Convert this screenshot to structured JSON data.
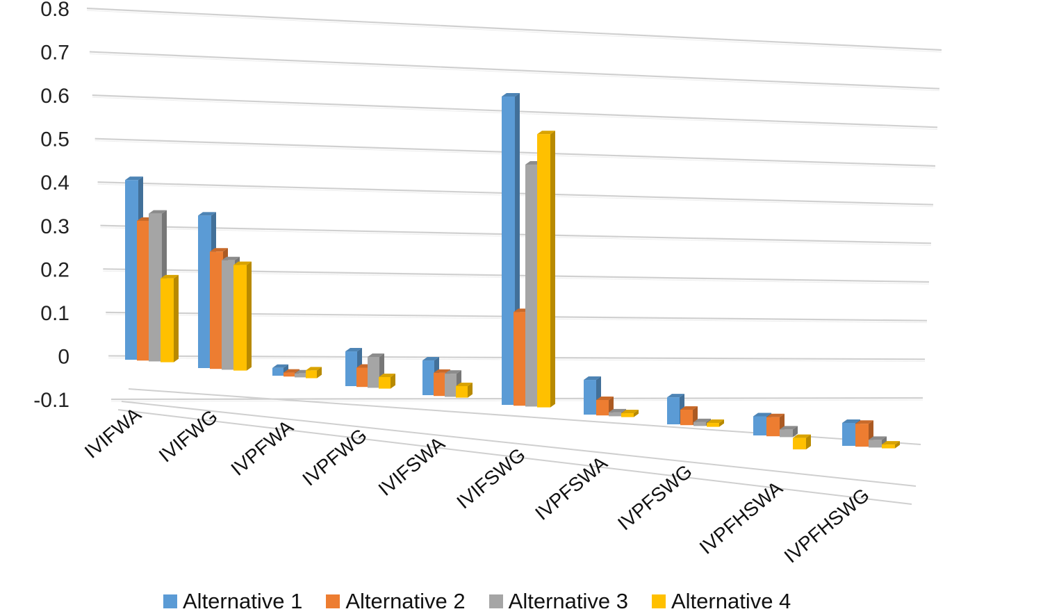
{
  "chart_data": {
    "type": "bar",
    "title": "",
    "xlabel": "",
    "ylabel": "",
    "ylim": [
      -0.1,
      0.8
    ],
    "yticks": [
      "0.8",
      "0.7",
      "0.6",
      "0.5",
      "0.4",
      "0.3",
      "0.2",
      "0.1",
      "0",
      "-0.1"
    ],
    "grid": true,
    "legend_position": "bottom",
    "categories": [
      "IVIFWA",
      "IVIFWG",
      "IVPFWA",
      "IVPFWG",
      "IVIFSWA",
      "IVIFSWG",
      "IVPFSWA",
      "IVPFSWG",
      "IVPFHSWA",
      "IVPFHSWG"
    ],
    "series": [
      {
        "name": "Alternative 1",
        "color": "#5B9BD5",
        "values": [
          0.45,
          0.39,
          0.02,
          0.09,
          0.09,
          0.79,
          0.09,
          0.07,
          0.05,
          0.06
        ]
      },
      {
        "name": "Alternative 2",
        "color": "#ED7D31",
        "values": [
          0.35,
          0.3,
          0.01,
          0.05,
          0.06,
          0.24,
          0.04,
          0.04,
          0.05,
          0.06
        ]
      },
      {
        "name": "Alternative 3",
        "color": "#A5A5A5",
        "values": [
          0.37,
          0.28,
          0.01,
          0.08,
          0.06,
          0.62,
          0.01,
          0.01,
          0.02,
          0.02
        ]
      },
      {
        "name": "Alternative 4",
        "color": "#FFC000",
        "values": [
          0.21,
          0.27,
          0.02,
          0.03,
          0.03,
          0.7,
          0.01,
          0.01,
          -0.03,
          0.01
        ]
      }
    ]
  }
}
